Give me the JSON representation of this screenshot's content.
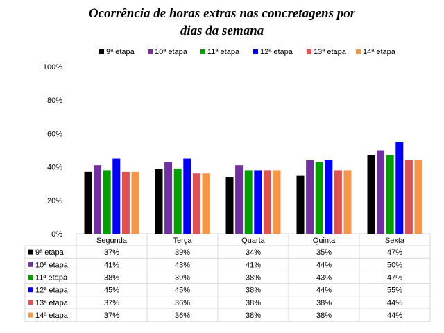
{
  "chart_data": {
    "type": "bar",
    "title_lines": [
      "Ocorrência de horas extras nas concretagens por",
      "dias da semana"
    ],
    "categories": [
      "Segunda",
      "Terça",
      "Quarta",
      "Quinta",
      "Sexta"
    ],
    "ylim": [
      0,
      100
    ],
    "y_ticks": [
      "0%",
      "20%",
      "40%",
      "60%",
      "80%",
      "100%"
    ],
    "legend_position": "top",
    "grid": false,
    "series": [
      {
        "name": "9ª etapa",
        "color": "#000000",
        "values": [
          37,
          39,
          34,
          35,
          47
        ],
        "labels": [
          "37%",
          "39%",
          "34%",
          "35%",
          "47%"
        ]
      },
      {
        "name": "10ª etapa",
        "color": "#7030A0",
        "values": [
          41,
          43,
          41,
          44,
          50
        ],
        "labels": [
          "41%",
          "43%",
          "41%",
          "44%",
          "50%"
        ]
      },
      {
        "name": "11ª etapa",
        "color": "#00A000",
        "values": [
          38,
          39,
          38,
          43,
          47
        ],
        "labels": [
          "38%",
          "39%",
          "38%",
          "43%",
          "47%"
        ]
      },
      {
        "name": "12ª etapa",
        "color": "#0000FF",
        "values": [
          45,
          45,
          38,
          44,
          55
        ],
        "labels": [
          "45%",
          "45%",
          "38%",
          "44%",
          "55%"
        ]
      },
      {
        "name": "13ª etapa",
        "color": "#E05252",
        "values": [
          37,
          36,
          38,
          38,
          44
        ],
        "labels": [
          "37%",
          "36%",
          "38%",
          "38%",
          "44%"
        ]
      },
      {
        "name": "14ª etapa",
        "color": "#F79646",
        "values": [
          37,
          36,
          38,
          38,
          44
        ],
        "labels": [
          "37%",
          "36%",
          "38%",
          "38%",
          "44%"
        ]
      }
    ]
  }
}
